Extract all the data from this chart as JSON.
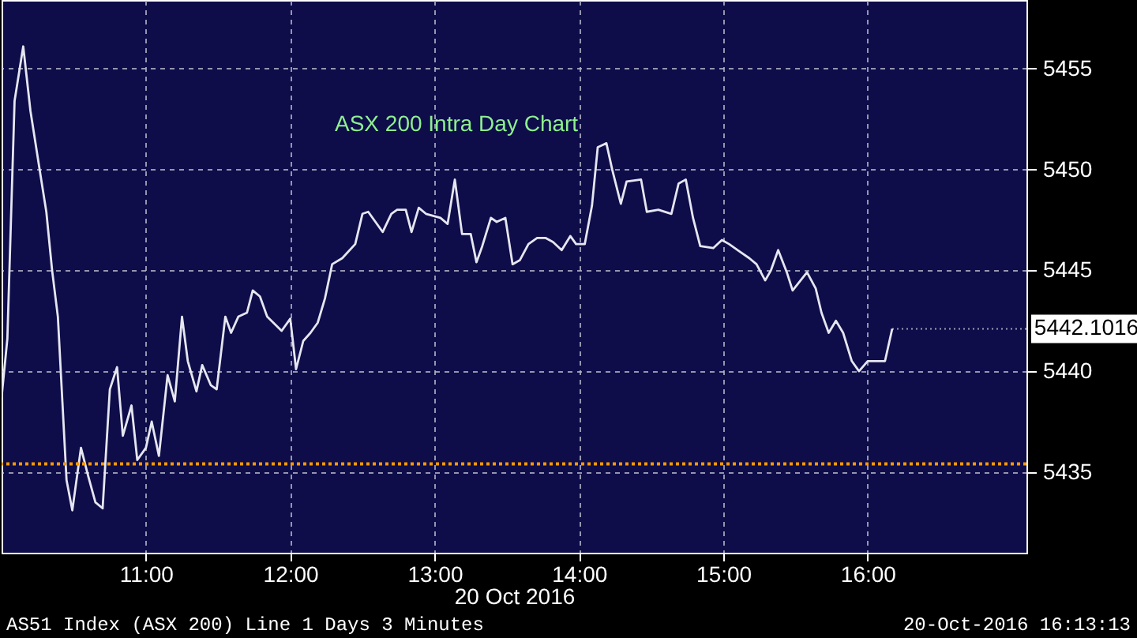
{
  "chart_data": {
    "type": "line",
    "title": "ASX 200 Intra Day Chart",
    "xlabel": "20 Oct 2016",
    "x": [
      10.0,
      10.04,
      10.09,
      10.15,
      10.2,
      10.27,
      10.31,
      10.35,
      10.39,
      10.45,
      10.49,
      10.55,
      10.6,
      10.65,
      10.7,
      10.75,
      10.8,
      10.84,
      10.9,
      10.94,
      11.0,
      11.04,
      11.09,
      11.15,
      11.2,
      11.25,
      11.29,
      11.35,
      11.39,
      11.45,
      11.49,
      11.55,
      11.59,
      11.64,
      11.7,
      11.74,
      11.79,
      11.84,
      11.94,
      12.0,
      12.04,
      12.09,
      12.14,
      12.19,
      12.24,
      12.29,
      12.36,
      12.45,
      12.5,
      12.54,
      12.64,
      12.7,
      12.74,
      12.8,
      12.84,
      12.89,
      12.94,
      13.04,
      13.09,
      13.14,
      13.19,
      13.25,
      13.29,
      13.33,
      13.39,
      13.43,
      13.49,
      13.54,
      13.59,
      13.65,
      13.71,
      13.77,
      13.82,
      13.88,
      13.94,
      13.98,
      14.04,
      14.09,
      14.13,
      14.19,
      14.23,
      14.29,
      14.33,
      14.43,
      14.47,
      14.55,
      14.64,
      14.69,
      14.74,
      14.79,
      14.84,
      14.93,
      14.99,
      15.04,
      15.1,
      15.18,
      15.23,
      15.29,
      15.33,
      15.38,
      15.44,
      15.48,
      15.58,
      15.64,
      15.68,
      15.73,
      15.78,
      15.83,
      15.89,
      15.94,
      16.0,
      16.12,
      16.17
    ],
    "series": [
      {
        "color": "#e6e6f0",
        "values": [
          5438.7,
          5441.6,
          5453.4,
          5456.1,
          5452.9,
          5449.7,
          5447.9,
          5445.0,
          5442.7,
          5434.6,
          5433.1,
          5436.2,
          5434.8,
          5433.5,
          5433.2,
          5439.1,
          5440.2,
          5436.8,
          5438.3,
          5435.6,
          5436.2,
          5437.5,
          5435.8,
          5439.8,
          5438.5,
          5442.7,
          5440.5,
          5439.0,
          5440.3,
          5439.3,
          5439.1,
          5442.7,
          5441.9,
          5442.7,
          5442.9,
          5444.0,
          5443.7,
          5442.7,
          5442.0,
          5442.6,
          5440.1,
          5441.5,
          5441.9,
          5442.4,
          5443.6,
          5445.3,
          5445.6,
          5446.3,
          5447.8,
          5447.9,
          5446.9,
          5447.8,
          5448.0,
          5448.0,
          5446.9,
          5448.1,
          5447.8,
          5447.6,
          5447.3,
          5449.5,
          5446.8,
          5446.8,
          5445.4,
          5446.2,
          5447.6,
          5447.4,
          5447.6,
          5445.3,
          5445.5,
          5446.3,
          5446.6,
          5446.6,
          5446.4,
          5446.0,
          5446.7,
          5446.3,
          5446.3,
          5448.2,
          5451.1,
          5451.3,
          5450.0,
          5448.3,
          5449.4,
          5449.5,
          5447.9,
          5448.0,
          5447.8,
          5449.3,
          5449.5,
          5447.6,
          5446.2,
          5446.1,
          5446.5,
          5446.3,
          5446.0,
          5445.6,
          5445.3,
          5444.5,
          5445.0,
          5446.0,
          5444.9,
          5444.0,
          5444.9,
          5444.1,
          5442.9,
          5441.9,
          5442.5,
          5441.9,
          5440.5,
          5440.0,
          5440.5,
          5440.5,
          5442.1
        ]
      }
    ],
    "xlim": [
      10,
      17.1
    ],
    "xticks": [
      {
        "value": 11,
        "label": "11:00"
      },
      {
        "value": 12,
        "label": "12:00"
      },
      {
        "value": 13,
        "label": "13:00"
      },
      {
        "value": 14,
        "label": "14:00"
      },
      {
        "value": 15,
        "label": "15:00"
      },
      {
        "value": 16,
        "label": "16:00"
      }
    ],
    "ylim": [
      5431,
      5458.4
    ],
    "yticks": [
      5435,
      5440,
      5445,
      5450,
      5455
    ],
    "grid": true,
    "ref_lines": [
      {
        "axis": "y",
        "value": 5435.4,
        "color": "#ff9900",
        "line_style": "dotted"
      }
    ],
    "annotations": [
      {
        "text": "5442.1016",
        "x": 16.17,
        "y": 5442.1016
      },
      "AS51 Index (ASX 200) Line 1 Days 3 Minutes",
      "20-Oct-2016 16:13:13"
    ]
  }
}
